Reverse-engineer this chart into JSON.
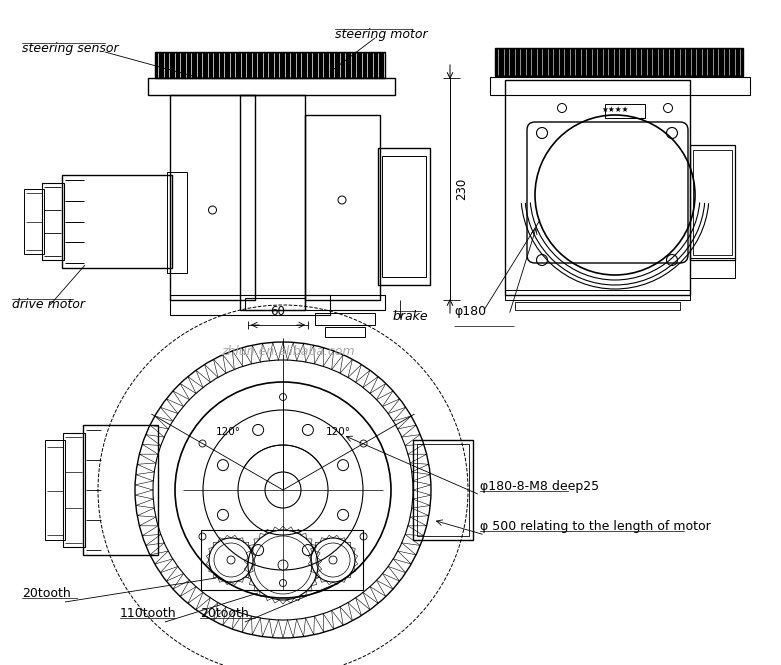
{
  "bg_color": "#ffffff",
  "line_color": "#000000",
  "labels": {
    "steering_sensor": "steering sensor",
    "steering_motor": "steering motor",
    "drive_motor": "drive motor",
    "brake": "brake",
    "dim_230": "230",
    "dim_60": "60",
    "dim_phi180": "φ180",
    "angle_120_left": "120°",
    "angle_120_right": "120°",
    "label_phi180_8m8": "φ180-8-M8 deep25",
    "label_phi500": "φ 500 relating to the length of motor",
    "label_20tooth_left": "20tooth",
    "label_110tooth": "110tooth",
    "label_20tooth_right": "20tooth",
    "watermark": "zhlun.en.alibaba.com"
  },
  "font_size_labels": 9,
  "font_size_dims": 8,
  "font_size_watermark": 9
}
